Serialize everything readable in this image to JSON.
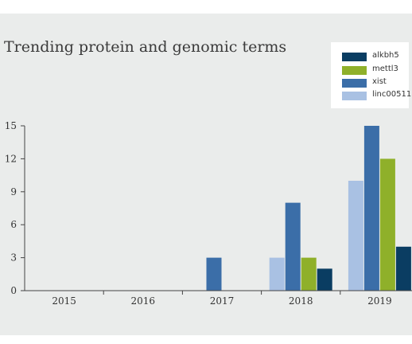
{
  "chart_data": {
    "type": "bar",
    "title": "Trending protein and genomic terms",
    "categories": [
      "2015",
      "2016",
      "2017",
      "2018",
      "2019"
    ],
    "series": [
      {
        "name": "alkbh5",
        "color": "#0a3d62",
        "values": [
          0,
          0,
          0,
          2,
          4
        ]
      },
      {
        "name": "mettl3",
        "color": "#8fb02a",
        "values": [
          0,
          0,
          0,
          3,
          12
        ]
      },
      {
        "name": "xist",
        "color": "#3b6ea8",
        "values": [
          0,
          0,
          3,
          8,
          15
        ]
      },
      {
        "name": "linc00511",
        "color": "#a9c1e3",
        "values": [
          0,
          0,
          0,
          3,
          10
        ]
      }
    ],
    "bar_order": [
      "linc00511",
      "xist",
      "mettl3",
      "alkbh5"
    ],
    "yticks": [
      "0",
      "3",
      "6",
      "9",
      "12",
      "15"
    ],
    "ylim": [
      0,
      15
    ],
    "legend_position": "top-right",
    "grid": false
  }
}
